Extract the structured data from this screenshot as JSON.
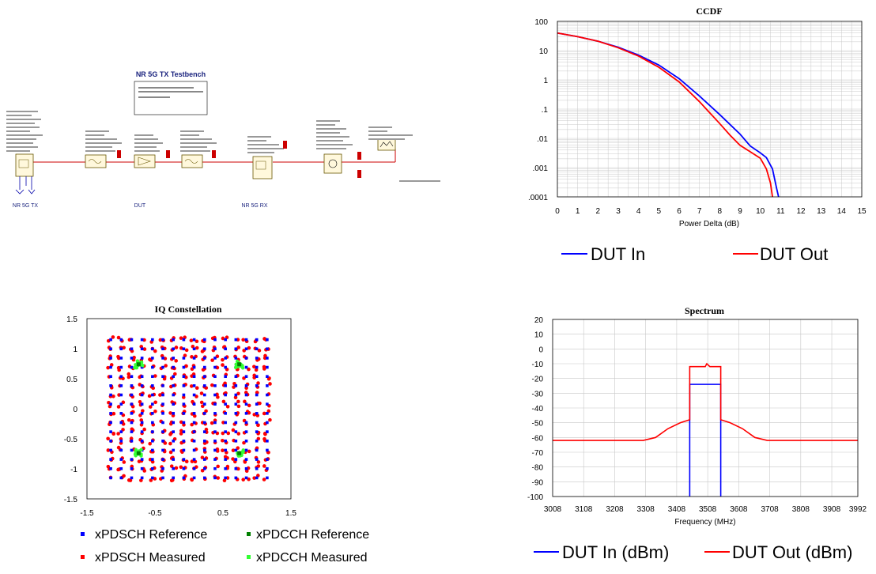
{
  "schematic": {
    "title": "NR 5G TX Testbench",
    "labels": [
      "NR 5G TX",
      "DUT",
      "NR 5G RX"
    ]
  },
  "colors": {
    "blue": "#0000ff",
    "red": "#ff0000",
    "green_dark": "#008000",
    "green_light": "#33ff33",
    "wire": "#cc0000",
    "grid": "#c8c8c8"
  },
  "ccdf": {
    "chart_data": {
      "type": "line",
      "title": "CCDF",
      "xlabel": "Power Delta (dB)",
      "ylabel": "",
      "xlim": [
        0,
        15
      ],
      "ylim": [
        0.0001,
        100
      ],
      "yscale": "log",
      "xticks": [
        "0",
        "1",
        "2",
        "3",
        "4",
        "5",
        "6",
        "7",
        "8",
        "9",
        "10",
        "11",
        "12",
        "13",
        "14",
        "15"
      ],
      "yticks": [
        "100",
        "10",
        "1",
        ".1",
        ".01",
        ".001",
        ".0001"
      ],
      "series": [
        {
          "name": "DUT In",
          "color": "#0000ff",
          "x": [
            0,
            1,
            2,
            3,
            4,
            5,
            6,
            7,
            8,
            9,
            9.5,
            10,
            10.3,
            10.6,
            10.8,
            10.9
          ],
          "y": [
            40,
            30,
            21,
            13,
            7,
            3.2,
            1.1,
            0.28,
            0.065,
            0.014,
            0.0055,
            0.0032,
            0.0022,
            0.0009,
            0.0002,
            0.0001
          ]
        },
        {
          "name": "DUT Out",
          "color": "#ff0000",
          "x": [
            0,
            1,
            2,
            3,
            4,
            5,
            6,
            7,
            8,
            8.5,
            9,
            9.5,
            10,
            10.3,
            10.5,
            10.6
          ],
          "y": [
            40,
            30,
            21,
            12.5,
            6.5,
            2.7,
            0.85,
            0.18,
            0.032,
            0.013,
            0.0058,
            0.0035,
            0.0021,
            0.0009,
            0.0003,
            0.0001
          ]
        }
      ],
      "grid": true,
      "legend": "bottom"
    }
  },
  "iq": {
    "chart_data": {
      "type": "scatter",
      "title": "IQ Constellation",
      "xlabel": "",
      "ylabel": "",
      "xlim": [
        -1.5,
        1.5
      ],
      "ylim": [
        -1.5,
        1.5
      ],
      "xticks": [
        "-1.5",
        "-0.5",
        "0.5",
        "1.5"
      ],
      "yticks": [
        "1.5",
        "1",
        "0.5",
        "0",
        "-0.5",
        "-1",
        "-1.5"
      ],
      "constellation": "256-QAM",
      "pdcch_points": [
        [
          -0.74,
          0.74
        ],
        [
          0.74,
          0.74
        ],
        [
          -0.74,
          -0.74
        ],
        [
          0.74,
          -0.74
        ]
      ],
      "legend": "bottom",
      "series_names": [
        "xPDSCH Reference",
        "xPDCCH Reference",
        "xPDSCH Measured",
        "xPDCCH Measured"
      ]
    }
  },
  "spectrum": {
    "chart_data": {
      "type": "line",
      "title": "Spectrum",
      "xlabel": "Frequency (MHz)",
      "ylabel": "",
      "xlim": [
        3008,
        3992
      ],
      "ylim": [
        -100,
        20
      ],
      "xticks": [
        "3008",
        "3108",
        "3208",
        "3308",
        "3408",
        "3508",
        "3608",
        "3708",
        "3808",
        "3908",
        "3992"
      ],
      "yticks": [
        "20",
        "10",
        "0",
        "-10",
        "-20",
        "-30",
        "-40",
        "-50",
        "-60",
        "-70",
        "-80",
        "-90",
        "-100"
      ],
      "series": [
        {
          "name": "DUT In (dBm)",
          "color": "#0000ff",
          "x": [
            3450,
            3450,
            3452,
            3548,
            3550,
            3550
          ],
          "y": [
            -100,
            -24,
            -24,
            -24,
            -24,
            -100
          ]
        },
        {
          "name": "DUT Out (dBm)",
          "color": "#ff0000",
          "x": [
            3008,
            3300,
            3340,
            3380,
            3420,
            3450,
            3450,
            3500,
            3505,
            3515,
            3550,
            3550,
            3580,
            3620,
            3660,
            3700,
            3992
          ],
          "y": [
            -62,
            -62,
            -60,
            -54,
            -50,
            -48,
            -12,
            -12,
            -10,
            -12,
            -12,
            -48,
            -50,
            -54,
            -60,
            -62,
            -62
          ]
        }
      ],
      "grid": true,
      "legend": "bottom"
    }
  }
}
